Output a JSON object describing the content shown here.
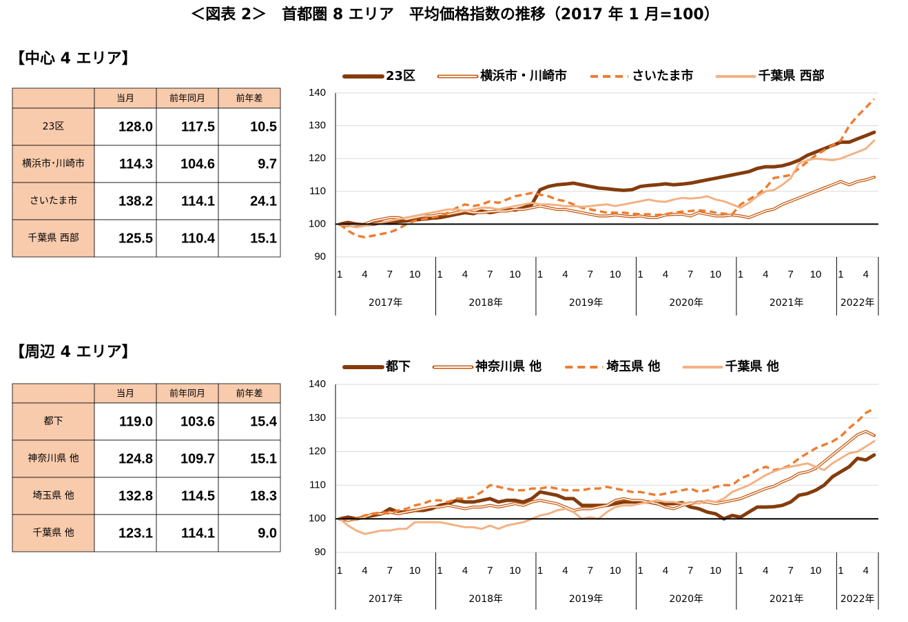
{
  "title": "＜図表 2＞　首都圏 8 エリア　平均価格指数の推移（2017 年 1 月=100）",
  "sections": [
    {
      "heading": "【中心 4 エリア】",
      "table": {
        "header": [
          "当月",
          "前年同月",
          "前年差"
        ],
        "rows": [
          {
            "label": "23区",
            "cells": [
              "128.0",
              "117.5",
              "10.5"
            ]
          },
          {
            "label": "横浜市･川崎市",
            "cells": [
              "114.3",
              "104.6",
              "9.7"
            ]
          },
          {
            "label": "さいたま市",
            "cells": [
              "138.2",
              "114.1",
              "24.1"
            ]
          },
          {
            "label": "千葉県 西部",
            "cells": [
              "125.5",
              "110.4",
              "15.1"
            ]
          }
        ]
      }
    },
    {
      "heading": "【周辺 4 エリア】",
      "table": {
        "header": [
          "当月",
          "前年同月",
          "前年差"
        ],
        "rows": [
          {
            "label": "都下",
            "cells": [
              "119.0",
              "103.6",
              "15.4"
            ]
          },
          {
            "label": "神奈川県 他",
            "cells": [
              "124.8",
              "109.7",
              "15.1"
            ]
          },
          {
            "label": "埼玉県 他",
            "cells": [
              "132.8",
              "114.5",
              "18.3"
            ]
          },
          {
            "label": "千葉県 他",
            "cells": [
              "123.1",
              "114.1",
              "9.0"
            ]
          }
        ]
      }
    }
  ],
  "chart_data": [
    {
      "type": "line",
      "categories": [
        "1",
        null,
        null,
        "4",
        null,
        null,
        "7",
        null,
        null,
        "10",
        null,
        null,
        "1",
        null,
        null,
        "4",
        null,
        null,
        "7",
        null,
        null,
        "10",
        null,
        null,
        "1",
        null,
        null,
        "4",
        null,
        null,
        "7",
        null,
        null,
        "10",
        null,
        null,
        "1",
        null,
        null,
        "4",
        null,
        null,
        "7",
        null,
        null,
        "10",
        null,
        null,
        "1",
        null,
        null,
        "4",
        null,
        null,
        "7",
        null,
        null,
        "10",
        null,
        null,
        "1",
        null,
        null,
        "4",
        null
      ],
      "year_labels": [
        "2017年",
        "2018年",
        "2019年",
        "2020年",
        "2021年",
        "2022年"
      ],
      "ylim": [
        90,
        140
      ],
      "yticks": [
        90,
        100,
        110,
        120,
        130,
        140
      ],
      "baseline": 100,
      "legend": "top",
      "series": [
        {
          "name": "23区",
          "color": "#843c0c",
          "style": "thick",
          "values": [
            100,
            100.5,
            100,
            99.8,
            100,
            100.5,
            100.3,
            100.8,
            101,
            101.3,
            101.5,
            101.8,
            102,
            102.5,
            103,
            103.5,
            103.2,
            104,
            103.5,
            104,
            104.5,
            104.3,
            105,
            106,
            110.5,
            111.5,
            112,
            112.2,
            112.5,
            112,
            111.5,
            111,
            110.8,
            110.5,
            110.3,
            110.5,
            111.5,
            111.8,
            112,
            112.3,
            112,
            112.2,
            112.5,
            113,
            113.5,
            114,
            114.5,
            115,
            115.5,
            116,
            117,
            117.5,
            117.5,
            117.8,
            118.5,
            119.5,
            121,
            122,
            123,
            124,
            125,
            125,
            126,
            127,
            128
          ]
        },
        {
          "name": "横浜市・川崎市",
          "color": "#c55a11",
          "style": "double",
          "values": [
            100,
            99.5,
            99.8,
            100,
            101,
            101.5,
            102,
            102,
            101.5,
            102,
            102.5,
            102.5,
            103,
            103,
            103.5,
            104,
            103.5,
            103.5,
            103.8,
            104,
            104,
            104.5,
            104.5,
            105,
            105.5,
            105,
            104.5,
            104.5,
            104,
            103.5,
            103,
            102.5,
            102.5,
            102.8,
            102.5,
            102.3,
            102.5,
            102,
            102,
            102.8,
            103,
            103,
            102.5,
            103.5,
            103,
            102.5,
            102.5,
            102.8,
            102.5,
            102,
            103,
            104,
            104.6,
            106,
            107,
            108,
            109,
            110,
            111,
            112,
            113,
            112,
            113,
            113.5,
            114.3
          ]
        },
        {
          "name": "さいたま市",
          "color": "#ed7d31",
          "style": "dashed",
          "values": [
            100,
            98,
            96.5,
            96,
            96.5,
            97,
            97.5,
            98.5,
            100,
            101,
            101.5,
            102,
            102.5,
            103.5,
            105,
            106,
            105.5,
            106,
            107,
            106.5,
            107.5,
            108.5,
            109,
            109.5,
            109,
            108.5,
            107.5,
            107,
            106,
            105,
            104.5,
            104,
            103.5,
            103.5,
            103.5,
            103.2,
            103,
            103,
            102.8,
            103,
            103.5,
            103.8,
            104,
            104.2,
            104,
            103.5,
            103.2,
            103,
            106,
            107.5,
            109,
            111,
            114.1,
            114.5,
            115,
            117,
            119,
            121,
            122.5,
            124,
            125.5,
            130,
            133,
            135.5,
            138.2
          ]
        },
        {
          "name": "千葉県 西部",
          "color": "#f4b183",
          "style": "solid",
          "values": [
            100,
            99.5,
            99,
            99.5,
            100,
            100.5,
            101,
            101.5,
            102,
            102.5,
            103,
            103.5,
            104,
            104.5,
            104.5,
            104,
            104.5,
            105,
            105,
            104.5,
            105,
            105.5,
            106,
            106.5,
            106,
            106,
            105.8,
            105.5,
            105.5,
            105.3,
            105.5,
            105.8,
            106,
            105.5,
            106,
            106.5,
            107,
            107.5,
            107,
            106.8,
            107.5,
            108,
            107.8,
            108,
            108.5,
            107.5,
            107,
            106,
            105,
            106.5,
            108.5,
            110,
            110.4,
            112,
            114,
            118.5,
            119.5,
            120,
            119.8,
            119.5,
            120,
            121,
            122,
            123,
            125.5
          ]
        }
      ]
    },
    {
      "type": "line",
      "categories": [
        "1",
        null,
        null,
        "4",
        null,
        null,
        "7",
        null,
        null,
        "10",
        null,
        null,
        "1",
        null,
        null,
        "4",
        null,
        null,
        "7",
        null,
        null,
        "10",
        null,
        null,
        "1",
        null,
        null,
        "4",
        null,
        null,
        "7",
        null,
        null,
        "10",
        null,
        null,
        "1",
        null,
        null,
        "4",
        null,
        null,
        "7",
        null,
        null,
        "10",
        null,
        null,
        "1",
        null,
        null,
        "4",
        null,
        null,
        "7",
        null,
        null,
        "10",
        null,
        null,
        "1",
        null,
        null,
        "4",
        null
      ],
      "year_labels": [
        "2017年",
        "2018年",
        "2019年",
        "2020年",
        "2021年",
        "2022年"
      ],
      "ylim": [
        90,
        140
      ],
      "yticks": [
        90,
        100,
        110,
        120,
        130,
        140
      ],
      "baseline": 100,
      "legend": "top",
      "series": [
        {
          "name": "都下",
          "color": "#843c0c",
          "style": "thick",
          "values": [
            100,
            100.5,
            100,
            100.5,
            101,
            101.5,
            103,
            102,
            102,
            102.5,
            102.5,
            103,
            104,
            104.5,
            105.5,
            105,
            105,
            105.5,
            106,
            105,
            105.5,
            105.5,
            105,
            106,
            108,
            107.5,
            107,
            106,
            106,
            104,
            104,
            104,
            104,
            104.5,
            105,
            105,
            105,
            105,
            104.5,
            104.5,
            104.5,
            104.8,
            103.5,
            103,
            102,
            101.5,
            100,
            101,
            100.5,
            102,
            103.5,
            103.5,
            103.6,
            104,
            105,
            107,
            107.5,
            108.5,
            110,
            112.5,
            114,
            115.5,
            118,
            117.5,
            119
          ]
        },
        {
          "name": "神奈川県 他",
          "color": "#c55a11",
          "style": "double",
          "values": [
            100,
            99.5,
            100,
            100.5,
            101.5,
            101.5,
            102,
            101.5,
            102,
            102.5,
            103,
            103.5,
            103.5,
            104,
            103.5,
            103,
            103.5,
            103.5,
            104,
            103.5,
            104,
            104.5,
            104,
            105,
            105.5,
            105,
            104.5,
            103.5,
            102.5,
            103,
            103,
            103.5,
            104,
            105.5,
            106,
            105.5,
            105.5,
            105,
            104.5,
            103.5,
            103,
            104,
            104.5,
            105,
            105,
            104.5,
            105,
            105.5,
            106,
            107,
            108,
            109,
            109.7,
            111,
            112,
            113.5,
            114,
            115,
            117,
            119,
            121,
            123,
            125,
            126,
            124.8
          ]
        },
        {
          "name": "埼玉県 他",
          "color": "#ed7d31",
          "style": "dashed",
          "values": [
            100,
            99.5,
            100,
            101,
            101.5,
            102,
            101.5,
            102.5,
            103,
            104,
            104.5,
            105.5,
            105.5,
            105,
            106,
            106,
            106.5,
            108,
            110,
            109.5,
            109,
            108.5,
            108.5,
            109,
            109,
            109.5,
            109,
            108.5,
            108.5,
            108.5,
            109,
            109,
            109.5,
            109,
            108.5,
            108,
            108,
            107.5,
            107,
            107.5,
            108,
            108.5,
            109,
            108,
            108.5,
            109.5,
            110,
            110,
            112,
            113,
            114.5,
            115.5,
            114.5,
            115,
            116,
            118,
            119.5,
            121,
            122,
            123,
            124.5,
            127,
            129,
            131.5,
            132.8
          ]
        },
        {
          "name": "千葉県 他",
          "color": "#f4b183",
          "style": "solid",
          "values": [
            100,
            98,
            96.5,
            95.5,
            96,
            96.5,
            96.5,
            97,
            97,
            99,
            99,
            99,
            99,
            98.5,
            98,
            97.5,
            97.5,
            97,
            98,
            97,
            98,
            98.5,
            99,
            100,
            101,
            101.5,
            102.5,
            103,
            102,
            100,
            100.5,
            100,
            102,
            103.5,
            104,
            104,
            104.5,
            105,
            105.5,
            105,
            105,
            104.5,
            105,
            104.5,
            105.5,
            105,
            106,
            108,
            109,
            110,
            111.5,
            113,
            114.1,
            115,
            115.5,
            116,
            116.5,
            115.5,
            114.5,
            116.5,
            118,
            119.5,
            120,
            121.5,
            123.1
          ]
        }
      ]
    }
  ]
}
